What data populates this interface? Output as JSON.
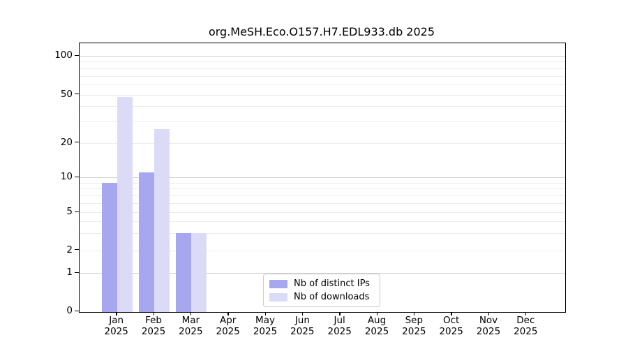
{
  "chart_data": {
    "type": "bar",
    "title": "org.MeSH.Eco.O157.H7.EDL933.db 2025",
    "categories": [
      "Jan",
      "Feb",
      "Mar",
      "Apr",
      "May",
      "Jun",
      "Jul",
      "Aug",
      "Sep",
      "Oct",
      "Nov",
      "Dec"
    ],
    "category_year": "2025",
    "series": [
      {
        "name": "Nb of distinct IPs",
        "color": "#a7a7f0",
        "values": [
          9,
          11,
          3,
          0,
          0,
          0,
          0,
          0,
          0,
          0,
          0,
          0
        ]
      },
      {
        "name": "Nb of downloads",
        "color": "#dbdbf8",
        "values": [
          48,
          26,
          3,
          0,
          0,
          0,
          0,
          0,
          0,
          0,
          0,
          0
        ]
      }
    ],
    "yaxis": {
      "tick_values": [
        0,
        1,
        2,
        5,
        10,
        20,
        50,
        100
      ],
      "scale": "log-like (log above 1, linear 0-1)"
    },
    "xlabel": "",
    "ylabel": "",
    "grid": "horizontal, log minor + major lines",
    "legend": {
      "position": "bottom-center",
      "entries": [
        "Nb of distinct IPs",
        "Nb of downloads"
      ]
    }
  }
}
